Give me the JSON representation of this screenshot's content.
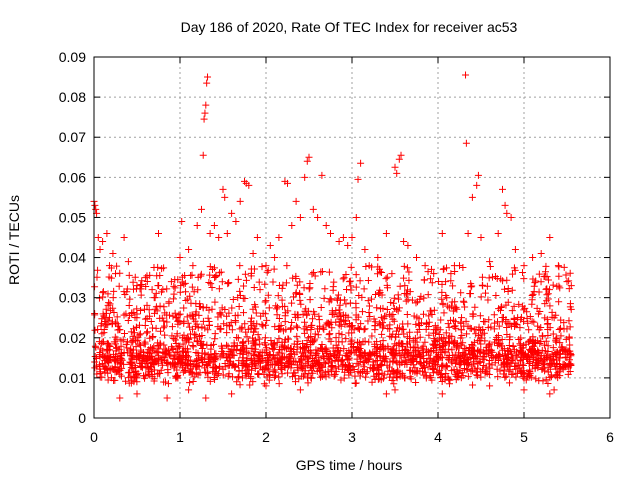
{
  "chart_data": {
    "type": "scatter",
    "title": "Day 186 of 2020, Rate Of TEC Index for receiver ac53",
    "xlabel": "GPS time / hours",
    "ylabel": "ROTI / TECUs",
    "xlim": [
      0,
      6
    ],
    "ylim": [
      0,
      0.09
    ],
    "xticks": [
      "0",
      "1",
      "2",
      "3",
      "4",
      "5",
      "6"
    ],
    "yticks": [
      "0",
      "0.01",
      "0.02",
      "0.03",
      "0.04",
      "0.05",
      "0.06",
      "0.07",
      "0.08",
      "0.09"
    ],
    "grid": true,
    "marker": "+",
    "color": "#ff0000",
    "series": [
      {
        "name": "ROTI",
        "points": [
          [
            0.0,
            0.054
          ],
          [
            0.01,
            0.053
          ],
          [
            0.02,
            0.052
          ],
          [
            0.03,
            0.051
          ],
          [
            0.05,
            0.045
          ],
          [
            0.07,
            0.042
          ],
          [
            0.1,
            0.044
          ],
          [
            0.15,
            0.046
          ],
          [
            0.18,
            0.038
          ],
          [
            0.22,
            0.041
          ],
          [
            0.25,
            0.036
          ],
          [
            0.35,
            0.045
          ],
          [
            0.4,
            0.039
          ],
          [
            0.5,
            0.033
          ],
          [
            0.6,
            0.035
          ],
          [
            0.7,
            0.03
          ],
          [
            0.75,
            0.046
          ],
          [
            0.8,
            0.032
          ],
          [
            0.9,
            0.034
          ],
          [
            1.0,
            0.04
          ],
          [
            1.02,
            0.049
          ],
          [
            1.1,
            0.042
          ],
          [
            1.15,
            0.038
          ],
          [
            1.2,
            0.048
          ],
          [
            1.25,
            0.052
          ],
          [
            1.27,
            0.0655
          ],
          [
            1.28,
            0.0745
          ],
          [
            1.29,
            0.076
          ],
          [
            1.3,
            0.078
          ],
          [
            1.31,
            0.0835
          ],
          [
            1.32,
            0.085
          ],
          [
            1.35,
            0.046
          ],
          [
            1.4,
            0.048
          ],
          [
            1.45,
            0.045
          ],
          [
            1.5,
            0.057
          ],
          [
            1.52,
            0.055
          ],
          [
            1.55,
            0.046
          ],
          [
            1.6,
            0.051
          ],
          [
            1.65,
            0.049
          ],
          [
            1.7,
            0.054
          ],
          [
            1.75,
            0.059
          ],
          [
            1.77,
            0.0585
          ],
          [
            1.8,
            0.058
          ],
          [
            1.85,
            0.041
          ],
          [
            1.9,
            0.045
          ],
          [
            2.0,
            0.038
          ],
          [
            2.05,
            0.043
          ],
          [
            2.1,
            0.04
          ],
          [
            2.15,
            0.045
          ],
          [
            2.22,
            0.059
          ],
          [
            2.25,
            0.0585
          ],
          [
            2.3,
            0.048
          ],
          [
            2.35,
            0.054
          ],
          [
            2.4,
            0.05
          ],
          [
            2.45,
            0.06
          ],
          [
            2.48,
            0.064
          ],
          [
            2.5,
            0.065
          ],
          [
            2.55,
            0.052
          ],
          [
            2.6,
            0.05
          ],
          [
            2.65,
            0.0605
          ],
          [
            2.7,
            0.048
          ],
          [
            2.75,
            0.046
          ],
          [
            2.85,
            0.044
          ],
          [
            2.9,
            0.045
          ],
          [
            2.95,
            0.043
          ],
          [
            3.0,
            0.045
          ],
          [
            3.05,
            0.05
          ],
          [
            3.07,
            0.0595
          ],
          [
            3.1,
            0.0635
          ],
          [
            3.15,
            0.042
          ],
          [
            3.2,
            0.038
          ],
          [
            3.3,
            0.04
          ],
          [
            3.4,
            0.046
          ],
          [
            3.5,
            0.0625
          ],
          [
            3.52,
            0.061
          ],
          [
            3.55,
            0.0645
          ],
          [
            3.57,
            0.0655
          ],
          [
            3.6,
            0.044
          ],
          [
            3.65,
            0.043
          ],
          [
            3.75,
            0.04
          ],
          [
            3.85,
            0.038
          ],
          [
            3.95,
            0.036
          ],
          [
            4.05,
            0.046
          ],
          [
            4.15,
            0.036
          ],
          [
            4.25,
            0.038
          ],
          [
            4.32,
            0.0855
          ],
          [
            4.33,
            0.0685
          ],
          [
            4.35,
            0.046
          ],
          [
            4.4,
            0.055
          ],
          [
            4.45,
            0.058
          ],
          [
            4.47,
            0.0605
          ],
          [
            4.5,
            0.045
          ],
          [
            4.6,
            0.039
          ],
          [
            4.7,
            0.046
          ],
          [
            4.75,
            0.057
          ],
          [
            4.78,
            0.053
          ],
          [
            4.8,
            0.051
          ],
          [
            4.85,
            0.05
          ],
          [
            4.9,
            0.042
          ],
          [
            5.0,
            0.038
          ],
          [
            5.1,
            0.04
          ],
          [
            5.2,
            0.041
          ],
          [
            5.3,
            0.045
          ],
          [
            5.4,
            0.038
          ],
          [
            5.5,
            0.034
          ],
          [
            5.55,
            0.033
          ],
          [
            0.3,
            0.005
          ],
          [
            0.5,
            0.006
          ],
          [
            0.85,
            0.005
          ],
          [
            1.1,
            0.007
          ],
          [
            1.3,
            0.005
          ],
          [
            1.6,
            0.006
          ],
          [
            2.0,
            0.008
          ],
          [
            2.4,
            0.007
          ],
          [
            3.4,
            0.006
          ],
          [
            3.5,
            0.007
          ],
          [
            4.05,
            0.006
          ],
          [
            4.6,
            0.008
          ],
          [
            5.0,
            0.007
          ],
          [
            5.3,
            0.006
          ],
          [
            5.35,
            0.007
          ]
        ]
      }
    ],
    "dense_band": {
      "description": "dense cloud of points between 0.007 and 0.035 across 0 to 5.55 hours",
      "x_range": [
        0.0,
        5.55
      ],
      "y_core": [
        0.008,
        0.022
      ],
      "y_spread": [
        0.022,
        0.038
      ],
      "count": 2600,
      "seed": 186
    }
  }
}
